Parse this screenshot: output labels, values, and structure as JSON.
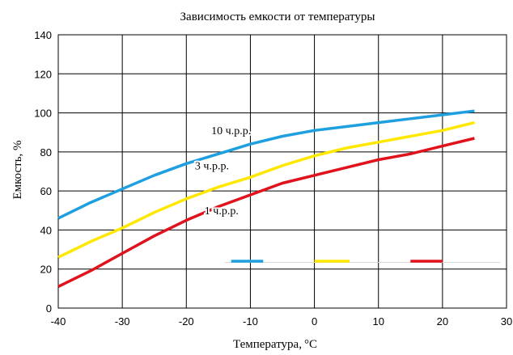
{
  "chart_data": {
    "type": "line",
    "title": "Зависимость емкости от температуры",
    "xlabel": "Температура,",
    "xlabel_unit": "°C",
    "ylabel": "Емкость, %",
    "xlim": [
      -40,
      30
    ],
    "ylim": [
      0,
      140
    ],
    "x_ticks": [
      -40,
      -30,
      -20,
      -10,
      0,
      10,
      20,
      30
    ],
    "y_ticks": [
      0,
      20,
      40,
      60,
      80,
      100,
      120,
      140
    ],
    "grid": true,
    "series": [
      {
        "name": "10 ч.р.р.",
        "color": "#1E9FE0",
        "x": [
          -40,
          -35,
          -30,
          -25,
          -20,
          -15,
          -10,
          -5,
          0,
          5,
          10,
          15,
          20,
          25
        ],
        "y": [
          46,
          54,
          61,
          68,
          74,
          79,
          84,
          88,
          91,
          93,
          95,
          97,
          99,
          101
        ]
      },
      {
        "name": "3 ч.р.р.",
        "color": "#FFE800",
        "x": [
          -40,
          -35,
          -30,
          -25,
          -20,
          -15,
          -10,
          -5,
          0,
          5,
          10,
          15,
          20,
          25
        ],
        "y": [
          26,
          34,
          41,
          49,
          56,
          62,
          67,
          73,
          78,
          82,
          85,
          88,
          91,
          95
        ]
      },
      {
        "name": "1 ч.р.р.",
        "color": "#E0121C",
        "x": [
          -40,
          -35,
          -30,
          -25,
          -20,
          -15,
          -10,
          -5,
          0,
          5,
          10,
          15,
          20,
          25
        ],
        "y": [
          11,
          19,
          28,
          37,
          45,
          52,
          58,
          64,
          68,
          72,
          76,
          79,
          83,
          87
        ]
      }
    ],
    "series_labels": [
      {
        "text": "10 ч.р.р.",
        "x": -13,
        "y": 89
      },
      {
        "text": "3 ч.р.р.",
        "x": -16,
        "y": 71
      },
      {
        "text": "1 ч.р.р.",
        "x": -14.5,
        "y": 48
      }
    ],
    "legend": {
      "placement": "inside-bottom-right",
      "swatch_y": 24,
      "segments": [
        {
          "x_from": -13,
          "x_to": -8,
          "color": "#1E9FE0"
        },
        {
          "x_from": 0,
          "x_to": 5.5,
          "color": "#FFE800"
        },
        {
          "x_from": 15,
          "x_to": 20,
          "color": "#E0121C"
        }
      ]
    }
  }
}
